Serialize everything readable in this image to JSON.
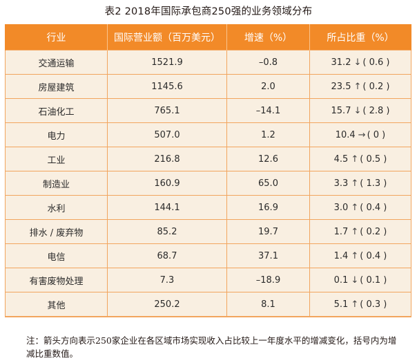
{
  "title": "表2  2018年国际承包商250强的业务领域分布",
  "table": {
    "headers": [
      "行业",
      "国际营业额（百万美元）",
      "增速（%）",
      "所占比重（%）"
    ],
    "rows": [
      {
        "industry": "交通运输",
        "revenue": "1521.9",
        "growth": "–0.8",
        "share": "31.2",
        "arrow": "↓",
        "change": "( 0.6 )"
      },
      {
        "industry": "房屋建筑",
        "revenue": "1145.6",
        "growth": "2.0",
        "share": "23.5",
        "arrow": "↑",
        "change": "( 0.2 )"
      },
      {
        "industry": "石油化工",
        "revenue": "765.1",
        "growth": "–14.1",
        "share": "15.7",
        "arrow": "↓",
        "change": "( 2.8 )"
      },
      {
        "industry": "电力",
        "revenue": "507.0",
        "growth": "1.2",
        "share": "10.4",
        "arrow": "→",
        "change": "( 0 )"
      },
      {
        "industry": "工业",
        "revenue": "216.8",
        "growth": "12.6",
        "share": "4.5",
        "arrow": "↑",
        "change": "( 0.5 )"
      },
      {
        "industry": "制造业",
        "revenue": "160.9",
        "growth": "65.0",
        "share": "3.3",
        "arrow": "↑",
        "change": "( 1.3 )"
      },
      {
        "industry": "水利",
        "revenue": "144.1",
        "growth": "16.9",
        "share": "3.0",
        "arrow": "↑",
        "change": "( 0.4 )"
      },
      {
        "industry": "排水 / 废弃物",
        "revenue": "85.2",
        "growth": "19.7",
        "share": "1.7",
        "arrow": "↑",
        "change": "( 0.2 )"
      },
      {
        "industry": "电信",
        "revenue": "68.7",
        "growth": "37.1",
        "share": "1.4",
        "arrow": "↑",
        "change": "( 0.4 )"
      },
      {
        "industry": "有害废物处理",
        "revenue": "7.3",
        "growth": "–18.9",
        "share": "0.1",
        "arrow": "↓",
        "change": "( 0.1 )"
      },
      {
        "industry": "其他",
        "revenue": "250.2",
        "growth": "8.1",
        "share": "5.1",
        "arrow": "↑",
        "change": "( 0.3 )"
      }
    ]
  },
  "note": "注：箭头方向表示250家企业在各区域市场实现收入占比较上一年度水平的增减变化，括号内为增减比重数值。",
  "colors": {
    "header_bg": "#f28a28",
    "row_bg": "#f9efe1",
    "border": "#f2a55e"
  }
}
